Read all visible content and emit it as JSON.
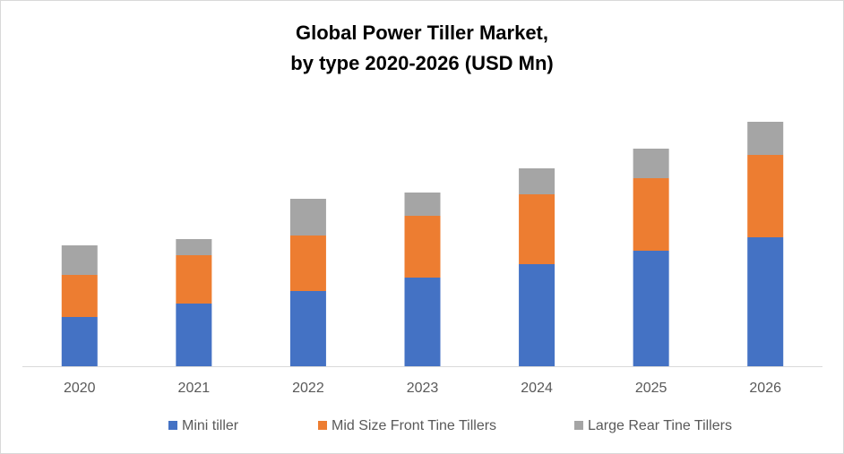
{
  "chart_data": {
    "type": "stacked-bar",
    "title": [
      "Global Power Tiller Market,",
      "by type 2020-2026 (USD Mn)"
    ],
    "categories": [
      "2020",
      "2021",
      "2022",
      "2023",
      "2024",
      "2025",
      "2026"
    ],
    "series": [
      {
        "name": "Mini tiller",
        "color": "#4472c4",
        "values": [
          55,
          70,
          84,
          99,
          114,
          129,
          144
        ]
      },
      {
        "name": "Mid Size Front Tine Tillers",
        "color": "#ed7d31",
        "values": [
          47,
          54,
          62,
          69,
          78,
          81,
          92
        ]
      },
      {
        "name": "Large Rear Tine Tillers",
        "color": "#a5a5a5",
        "values": [
          33,
          18,
          41,
          26,
          29,
          33,
          37
        ]
      }
    ],
    "ylim": [
      0,
      300
    ]
  }
}
